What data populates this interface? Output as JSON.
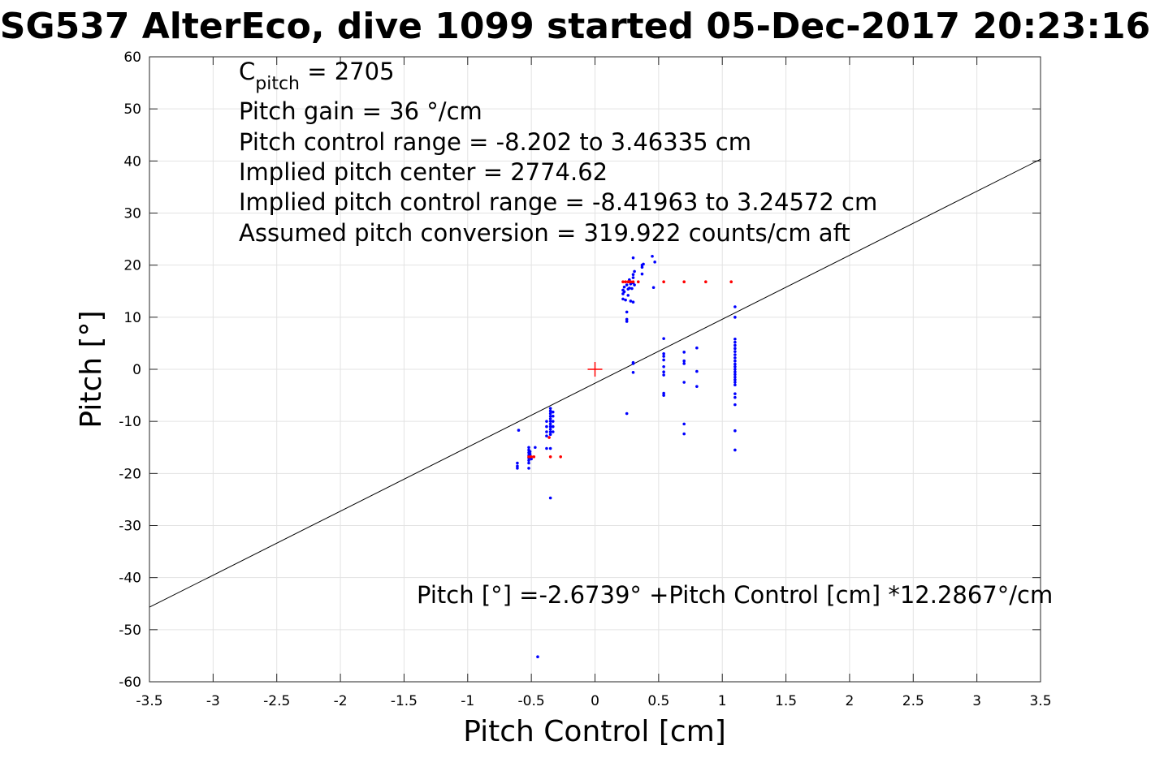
{
  "chart_data": {
    "type": "scatter",
    "title": "SG537 AlterEco, dive 1099 started 05-Dec-2017 20:23:16",
    "xlabel": "Pitch Control [cm]",
    "ylabel": "Pitch [°]",
    "xlim": [
      -3.5,
      3.5
    ],
    "ylim": [
      -60,
      60
    ],
    "xticks": [
      -3.5,
      -3,
      -2.5,
      -2,
      -1.5,
      -1,
      -0.5,
      0,
      0.5,
      1,
      1.5,
      2,
      2.5,
      3,
      3.5
    ],
    "xtick_labels": [
      "-3.5",
      "-3",
      "-2.5",
      "-2",
      "-1.5",
      "-1",
      "-0.5",
      "0",
      "0.5",
      "1",
      "1.5",
      "2",
      "2.5",
      "3",
      "3.5"
    ],
    "yticks": [
      -60,
      -50,
      -40,
      -30,
      -20,
      -10,
      0,
      10,
      20,
      30,
      40,
      50,
      60
    ],
    "ytick_labels": [
      "-60",
      "-50",
      "-40",
      "-30",
      "-20",
      "-10",
      "0",
      "10",
      "20",
      "30",
      "40",
      "50",
      "60"
    ],
    "grid": true,
    "annotations": {
      "c_pitch_main": "C",
      "c_pitch_sub": "pitch",
      "c_pitch_value": " = 2705",
      "pitch_gain": "Pitch gain = 36 °/cm",
      "control_range": "Pitch control range = -8.202 to 3.46335 cm",
      "implied_center": "Implied pitch center = 2774.62",
      "implied_range": "Implied pitch control range = -8.41963 to 3.24572 cm",
      "conversion": "Assumed pitch conversion = 319.922 counts/cm aft",
      "fit_equation": "Pitch [°] =-2.6739° +Pitch Control [cm] *12.2867°/cm"
    },
    "fit_line": {
      "intercept": -2.6739,
      "slope": 12.2867,
      "color": "#000000"
    },
    "center_marker": {
      "x": 0,
      "y": 0,
      "color": "#ff0000"
    },
    "series": [
      {
        "color": "#0000ff",
        "points": [
          [
            -0.6,
            -11.7
          ],
          [
            -0.61,
            -18
          ],
          [
            -0.61,
            -18.6
          ],
          [
            -0.61,
            -19
          ],
          [
            -0.52,
            -15
          ],
          [
            -0.52,
            -15.5
          ],
          [
            -0.52,
            -16
          ],
          [
            -0.52,
            -16.5
          ],
          [
            -0.52,
            -17
          ],
          [
            -0.52,
            -17.5
          ],
          [
            -0.52,
            -18
          ],
          [
            -0.52,
            -19
          ],
          [
            -0.51,
            -15.8
          ],
          [
            -0.51,
            -16.3
          ],
          [
            -0.5,
            -17.2
          ],
          [
            -0.47,
            -15
          ],
          [
            -0.45,
            -55.2
          ],
          [
            -0.38,
            -10
          ],
          [
            -0.38,
            -11
          ],
          [
            -0.38,
            -12
          ],
          [
            -0.38,
            -12.8
          ],
          [
            -0.38,
            -15.2
          ],
          [
            -0.35,
            -7.5
          ],
          [
            -0.35,
            -8
          ],
          [
            -0.35,
            -8.5
          ],
          [
            -0.35,
            -9
          ],
          [
            -0.35,
            -9.5
          ],
          [
            -0.35,
            -10
          ],
          [
            -0.35,
            -10.5
          ],
          [
            -0.35,
            -11
          ],
          [
            -0.35,
            -11.5
          ],
          [
            -0.35,
            -12
          ],
          [
            -0.35,
            -12.5
          ],
          [
            -0.35,
            -15.2
          ],
          [
            -0.35,
            -24.7
          ],
          [
            -0.33,
            -8.2
          ],
          [
            -0.33,
            -9
          ],
          [
            -0.33,
            -10
          ],
          [
            -0.33,
            -11
          ],
          [
            -0.33,
            -12
          ],
          [
            0.22,
            13.5
          ],
          [
            0.22,
            14.5
          ],
          [
            0.22,
            15.2
          ],
          [
            0.23,
            15.8
          ],
          [
            0.23,
            14.9
          ],
          [
            0.24,
            13.3
          ],
          [
            0.25,
            9.2
          ],
          [
            0.25,
            9.6
          ],
          [
            0.25,
            11
          ],
          [
            0.25,
            16.2
          ],
          [
            0.25,
            -8.5
          ],
          [
            0.26,
            14.2
          ],
          [
            0.26,
            15.4
          ],
          [
            0.27,
            15.6
          ],
          [
            0.27,
            17.2
          ],
          [
            0.28,
            16.4
          ],
          [
            0.28,
            13.1
          ],
          [
            0.29,
            15.5
          ],
          [
            0.3,
            17.6
          ],
          [
            0.3,
            18.2
          ],
          [
            0.3,
            21.4
          ],
          [
            0.3,
            16.6
          ],
          [
            0.3,
            12.9
          ],
          [
            0.3,
            1.3
          ],
          [
            0.3,
            1.1
          ],
          [
            0.3,
            -0.6
          ],
          [
            0.31,
            18.8
          ],
          [
            0.31,
            16.2
          ],
          [
            0.37,
            19.6
          ],
          [
            0.37,
            20
          ],
          [
            0.37,
            18.3
          ],
          [
            0.38,
            20.2
          ],
          [
            0.45,
            21.7
          ],
          [
            0.46,
            15.7
          ],
          [
            0.47,
            20.6
          ],
          [
            0.54,
            5.9
          ],
          [
            0.54,
            3
          ],
          [
            0.54,
            2.5
          ],
          [
            0.54,
            1.8
          ],
          [
            0.54,
            0.5
          ],
          [
            0.54,
            -0.5
          ],
          [
            0.54,
            -1.1
          ],
          [
            0.54,
            -4.6
          ],
          [
            0.54,
            -5
          ],
          [
            0.7,
            3.3
          ],
          [
            0.7,
            1.6
          ],
          [
            0.7,
            1.1
          ],
          [
            0.7,
            -2.5
          ],
          [
            0.7,
            -10.5
          ],
          [
            0.7,
            -12.4
          ],
          [
            0.8,
            4.1
          ],
          [
            0.8,
            -0.4
          ],
          [
            0.8,
            -3.3
          ],
          [
            1.1,
            12
          ],
          [
            1.1,
            10
          ],
          [
            1.1,
            5.8
          ],
          [
            1.1,
            5.2
          ],
          [
            1.1,
            4.6
          ],
          [
            1.1,
            4
          ],
          [
            1.1,
            3.4
          ],
          [
            1.1,
            2.8
          ],
          [
            1.1,
            2.2
          ],
          [
            1.1,
            1.6
          ],
          [
            1.1,
            1
          ],
          [
            1.1,
            0.5
          ],
          [
            1.1,
            0
          ],
          [
            1.1,
            -0.5
          ],
          [
            1.1,
            -1
          ],
          [
            1.1,
            -1.5
          ],
          [
            1.1,
            -2
          ],
          [
            1.1,
            -2.5
          ],
          [
            1.1,
            -3
          ],
          [
            1.1,
            -4.7
          ],
          [
            1.1,
            -5.4
          ],
          [
            1.1,
            -6.8
          ],
          [
            1.1,
            -11.8
          ],
          [
            1.1,
            -15.5
          ]
        ]
      },
      {
        "color": "#ff0000",
        "points": [
          [
            -0.52,
            -16.8
          ],
          [
            -0.5,
            -16.8
          ],
          [
            -0.48,
            -16.8
          ],
          [
            -0.35,
            -16.8
          ],
          [
            -0.27,
            -16.8
          ],
          [
            -0.36,
            -13.1
          ],
          [
            0.22,
            16.8
          ],
          [
            0.24,
            16.8
          ],
          [
            0.26,
            16.8
          ],
          [
            0.27,
            16.8
          ],
          [
            0.28,
            16.8
          ],
          [
            0.3,
            16.8
          ],
          [
            0.34,
            16.8
          ],
          [
            0.54,
            16.8
          ],
          [
            0.7,
            16.8
          ],
          [
            0.87,
            16.8
          ],
          [
            1.07,
            16.8
          ]
        ]
      }
    ]
  }
}
